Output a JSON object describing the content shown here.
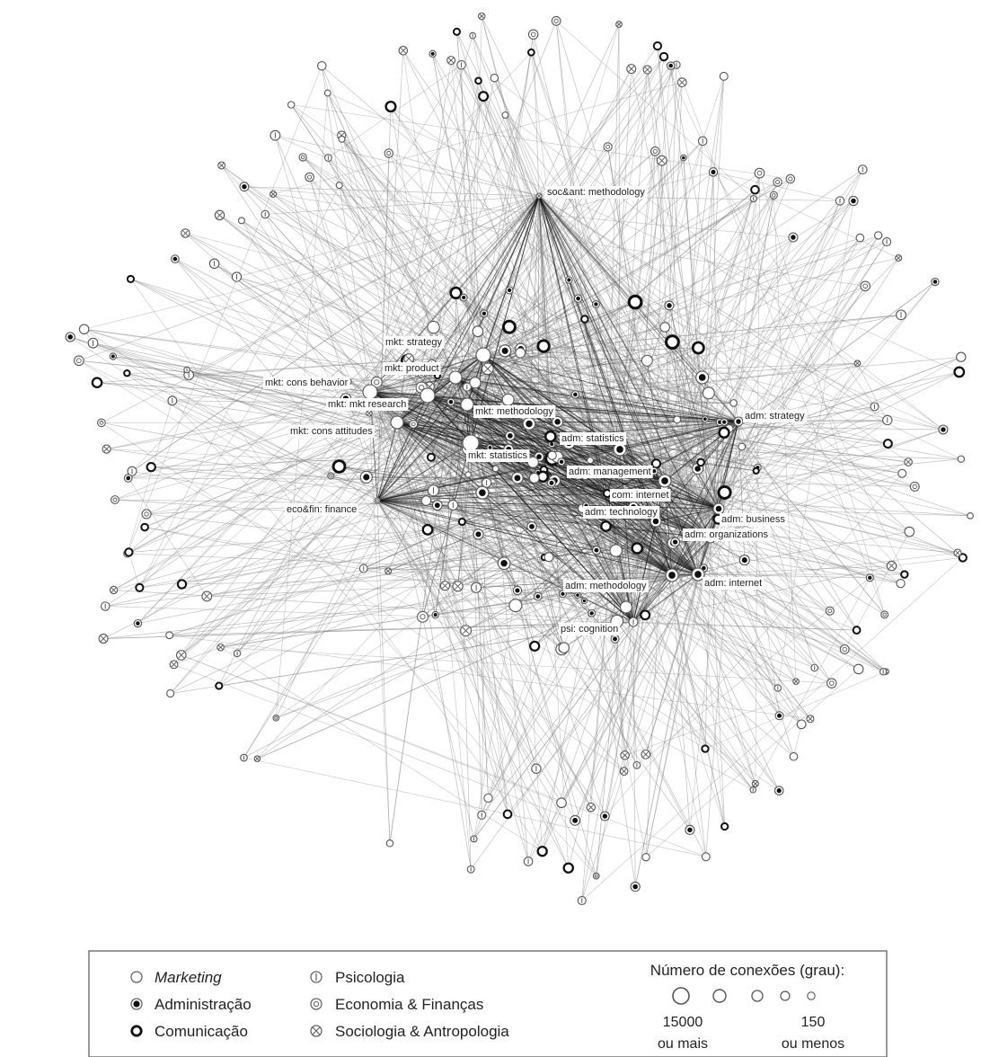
{
  "colors": {
    "background": "#ffffff",
    "edge": "#3a3a3a",
    "edge_light": "#8a8a8a",
    "node_stroke": "#555555",
    "marketing_fill": "#ffffff",
    "administracao_fill": "#111111",
    "comunicacao_stroke": "#111111"
  },
  "labels": [
    {
      "id": "soc_methodology",
      "text": "soc&ant: methodology",
      "node": "h_soc"
    },
    {
      "id": "mkt_strategy",
      "text": "mkt: strategy",
      "node": "h_mkt_strategy"
    },
    {
      "id": "mkt_product",
      "text": "mkt: product",
      "node": "h_mkt_product"
    },
    {
      "id": "mkt_cons_behavior",
      "text": "mkt: cons behavior",
      "node": "h_mkt_cons_behavior"
    },
    {
      "id": "mkt_mkt_research",
      "text": "mkt: mkt research",
      "node": "h_mkt_research"
    },
    {
      "id": "mkt_methodology",
      "text": "mkt: methodology",
      "node": "h_mkt_methodology"
    },
    {
      "id": "mkt_cons_attitudes",
      "text": "mkt: cons attitudes",
      "node": "h_mkt_cons_attitudes"
    },
    {
      "id": "adm_statistics",
      "text": "adm: statistics",
      "node": "h_adm_statistics"
    },
    {
      "id": "mkt_statistics",
      "text": "mkt: statistics",
      "node": "h_mkt_statistics"
    },
    {
      "id": "adm_management",
      "text": "adm: management",
      "node": "h_adm_management"
    },
    {
      "id": "com_internet",
      "text": "com: internet",
      "node": "h_com_internet"
    },
    {
      "id": "eco_finance",
      "text": "eco&fin: finance",
      "node": "h_eco_finance"
    },
    {
      "id": "adm_technology",
      "text": "adm: technology",
      "node": "h_adm_technology"
    },
    {
      "id": "adm_strategy",
      "text": "adm: strategy",
      "node": "h_adm_strategy"
    },
    {
      "id": "adm_business",
      "text": "adm: business",
      "node": "h_adm_business"
    },
    {
      "id": "adm_organizations",
      "text": "adm: organizations",
      "node": "h_adm_organizations"
    },
    {
      "id": "adm_methodology",
      "text": "adm: methodology",
      "node": "h_adm_methodology"
    },
    {
      "id": "adm_internet",
      "text": "adm: internet",
      "node": "h_adm_internet"
    },
    {
      "id": "psi_cognition",
      "text": "psi: cognition",
      "node": "h_psi_cognition"
    }
  ],
  "legend": {
    "disciplines": [
      {
        "id": "marketing",
        "label": "Marketing",
        "italic": true,
        "symbol": "marketing"
      },
      {
        "id": "administracao",
        "label": "Administração",
        "italic": false,
        "symbol": "administracao"
      },
      {
        "id": "comunicacao",
        "label": "Comunicação",
        "italic": false,
        "symbol": "comunicacao"
      },
      {
        "id": "psicologia",
        "label": "Psicologia",
        "italic": false,
        "symbol": "psicologia"
      },
      {
        "id": "economia",
        "label": "Economia & Finanças",
        "italic": false,
        "symbol": "economia"
      },
      {
        "id": "sociologia",
        "label": "Sociologia & Antropologia",
        "italic": false,
        "symbol": "sociologia"
      }
    ],
    "degree_title": "Número de conexões (grau):",
    "degree_high_value": "15000",
    "degree_high_qualifier": "ou mais",
    "degree_low_value": "150",
    "degree_low_qualifier": "ou menos"
  }
}
